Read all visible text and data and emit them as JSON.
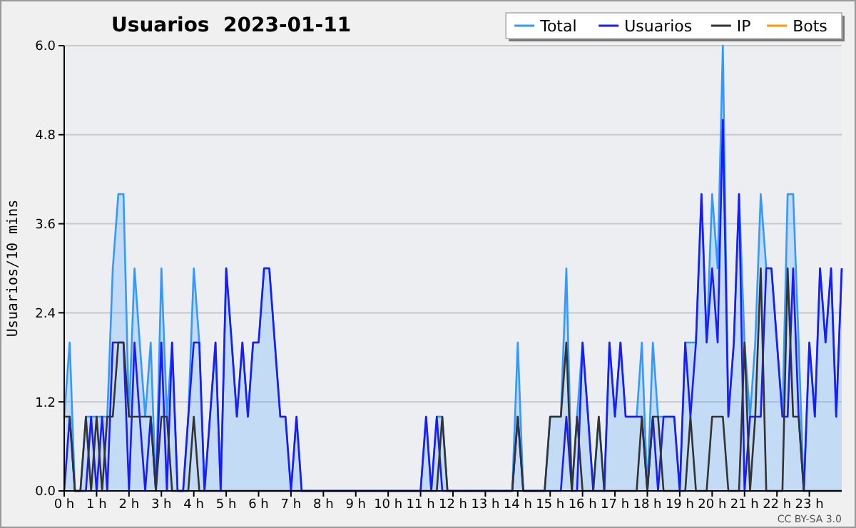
{
  "chart_data": {
    "type": "line",
    "title": "Usuarios  2023-01-11",
    "ylabel": "Usuarios/10 mins",
    "annotations": [
      "CC BY-SA 3.0"
    ],
    "x": [
      0,
      0.17,
      0.33,
      0.5,
      0.67,
      0.83,
      1,
      1.17,
      1.33,
      1.5,
      1.67,
      1.83,
      2,
      2.17,
      2.33,
      2.5,
      2.67,
      2.83,
      3,
      3.17,
      3.33,
      3.5,
      3.67,
      3.83,
      4,
      4.17,
      4.33,
      4.5,
      4.67,
      4.83,
      5,
      5.17,
      5.33,
      5.5,
      5.67,
      5.83,
      6,
      6.17,
      6.33,
      6.5,
      6.67,
      6.83,
      7,
      7.17,
      7.33,
      7.5,
      7.67,
      7.83,
      8,
      8.17,
      8.33,
      8.5,
      8.67,
      8.83,
      9,
      9.17,
      9.33,
      9.5,
      9.67,
      9.83,
      10,
      10.17,
      10.33,
      10.5,
      10.67,
      10.83,
      11,
      11.17,
      11.33,
      11.5,
      11.67,
      11.83,
      12,
      12.17,
      12.33,
      12.5,
      12.67,
      12.83,
      13,
      13.17,
      13.33,
      13.5,
      13.67,
      13.83,
      14,
      14.17,
      14.33,
      14.5,
      14.67,
      14.83,
      15,
      15.17,
      15.33,
      15.5,
      15.67,
      15.83,
      16,
      16.17,
      16.33,
      16.5,
      16.67,
      16.83,
      17,
      17.17,
      17.33,
      17.5,
      17.67,
      17.83,
      18,
      18.17,
      18.33,
      18.5,
      18.67,
      18.83,
      19,
      19.17,
      19.33,
      19.5,
      19.67,
      19.83,
      20,
      20.17,
      20.33,
      20.5,
      20.67,
      20.83,
      21,
      21.17,
      21.33,
      21.5,
      21.67,
      21.83,
      22,
      22.17,
      22.33,
      22.5,
      22.67,
      22.83,
      23,
      23.17,
      23.33,
      23.5,
      23.67,
      23.83,
      24
    ],
    "series": [
      {
        "name": "Total",
        "type": "area",
        "color": "#3399ff",
        "values": [
          1,
          2,
          0,
          0,
          1,
          1,
          1,
          1,
          1,
          3,
          4,
          4,
          1,
          3,
          2,
          1,
          2,
          0,
          3,
          1,
          2,
          0,
          0,
          1,
          3,
          2,
          0,
          1,
          2,
          0,
          3,
          2,
          1,
          2,
          1,
          2,
          2,
          3,
          3,
          2,
          1,
          1,
          0,
          1,
          0,
          0,
          0,
          0,
          0,
          0,
          0,
          0,
          0,
          0,
          0,
          0,
          0,
          0,
          0,
          0,
          0,
          0,
          0,
          0,
          0,
          0,
          0,
          1,
          0,
          1,
          1,
          0,
          0,
          0,
          0,
          0,
          0,
          0,
          0,
          0,
          0,
          0,
          0,
          0,
          2,
          0,
          0,
          0,
          0,
          0,
          1,
          1,
          1,
          3,
          0,
          1,
          2,
          1,
          0,
          1,
          0,
          2,
          1,
          2,
          1,
          1,
          1,
          2,
          0,
          2,
          1,
          1,
          1,
          1,
          0,
          2,
          2,
          2,
          4,
          2,
          4,
          3,
          6,
          1,
          2,
          4,
          2,
          1,
          2,
          4,
          3,
          3,
          2,
          1,
          4,
          4,
          2,
          0,
          2,
          1,
          3,
          2,
          3,
          1,
          3
        ]
      },
      {
        "name": "Usuarios",
        "type": "line",
        "color": "#1a1aff",
        "values": [
          0,
          1,
          0,
          0,
          0,
          1,
          0,
          1,
          0,
          2,
          2,
          2,
          0,
          2,
          1,
          0,
          1,
          0,
          2,
          0,
          2,
          0,
          0,
          1,
          2,
          2,
          0,
          1,
          2,
          0,
          3,
          2,
          1,
          2,
          1,
          2,
          2,
          3,
          3,
          2,
          1,
          1,
          0,
          1,
          0,
          0,
          0,
          0,
          0,
          0,
          0,
          0,
          0,
          0,
          0,
          0,
          0,
          0,
          0,
          0,
          0,
          0,
          0,
          0,
          0,
          0,
          0,
          1,
          0,
          1,
          0,
          0,
          0,
          0,
          0,
          0,
          0,
          0,
          0,
          0,
          0,
          0,
          0,
          0,
          1,
          0,
          0,
          0,
          0,
          0,
          0,
          0,
          0,
          1,
          0,
          0,
          2,
          1,
          0,
          0,
          0,
          2,
          1,
          2,
          1,
          1,
          1,
          1,
          0,
          1,
          0,
          1,
          1,
          1,
          0,
          2,
          1,
          2,
          4,
          2,
          3,
          2,
          5,
          1,
          2,
          4,
          0,
          1,
          1,
          1,
          3,
          3,
          2,
          1,
          1,
          3,
          1,
          0,
          2,
          1,
          3,
          2,
          3,
          1,
          3
        ]
      },
      {
        "name": "IP",
        "type": "line",
        "color": "#333333",
        "values": [
          1,
          1,
          0,
          0,
          1,
          0,
          1,
          0,
          1,
          1,
          2,
          2,
          1,
          1,
          1,
          1,
          1,
          0,
          1,
          1,
          0,
          0,
          0,
          0,
          1,
          0,
          0,
          0,
          0,
          0,
          0,
          0,
          0,
          0,
          0,
          0,
          0,
          0,
          0,
          0,
          0,
          0,
          0,
          0,
          0,
          0,
          0,
          0,
          0,
          0,
          0,
          0,
          0,
          0,
          0,
          0,
          0,
          0,
          0,
          0,
          0,
          0,
          0,
          0,
          0,
          0,
          0,
          0,
          0,
          0,
          1,
          0,
          0,
          0,
          0,
          0,
          0,
          0,
          0,
          0,
          0,
          0,
          0,
          0,
          1,
          0,
          0,
          0,
          0,
          0,
          1,
          1,
          1,
          2,
          0,
          1,
          0,
          0,
          0,
          1,
          0,
          0,
          0,
          0,
          0,
          0,
          0,
          1,
          0,
          1,
          1,
          0,
          0,
          0,
          0,
          0,
          1,
          0,
          0,
          0,
          1,
          1,
          1,
          0,
          0,
          0,
          2,
          0,
          1,
          3,
          0,
          0,
          0,
          0,
          3,
          1,
          1,
          0,
          0,
          0,
          0,
          0,
          0,
          0,
          0
        ]
      },
      {
        "name": "Bots",
        "type": "line",
        "color": "#ff9900",
        "values": [
          null,
          null,
          null,
          null,
          null,
          null,
          null,
          null,
          null,
          null,
          null,
          null,
          null,
          null,
          null,
          null,
          null,
          null,
          null,
          null,
          null,
          null,
          null,
          null,
          null,
          null,
          null,
          null,
          null,
          null,
          null,
          null,
          null,
          null,
          null,
          null,
          null,
          null,
          null,
          null,
          null,
          null,
          null,
          null,
          null,
          null,
          null,
          null,
          null,
          null,
          null,
          null,
          null,
          null,
          null,
          null,
          null,
          null,
          null,
          null,
          null,
          null,
          null,
          null,
          null,
          null,
          null,
          null,
          null,
          null,
          null,
          null,
          null,
          null,
          null,
          null,
          null,
          null,
          null,
          null,
          null,
          null,
          null,
          null,
          null,
          null,
          null,
          null,
          null,
          null,
          null,
          null,
          null,
          null,
          null,
          null,
          null,
          null,
          null,
          null,
          null,
          null,
          null,
          null,
          null,
          null,
          null,
          null,
          null,
          null,
          null,
          null,
          null,
          null,
          null,
          null,
          null,
          null,
          null,
          null,
          null,
          null,
          null,
          null,
          null,
          null,
          null,
          null,
          null,
          null,
          null,
          null,
          null,
          null,
          null,
          null,
          null,
          null,
          null,
          null,
          null,
          null,
          null,
          null,
          null
        ]
      }
    ],
    "xlim": [
      0,
      24
    ],
    "xticks": [
      {
        "value": 0,
        "label": "0 h"
      },
      {
        "value": 1,
        "label": "1 h"
      },
      {
        "value": 2,
        "label": "2 h"
      },
      {
        "value": 3,
        "label": "3 h"
      },
      {
        "value": 4,
        "label": "4 h"
      },
      {
        "value": 5,
        "label": "5 h"
      },
      {
        "value": 6,
        "label": "6 h"
      },
      {
        "value": 7,
        "label": "7 h"
      },
      {
        "value": 8,
        "label": "8 h"
      },
      {
        "value": 9,
        "label": "9 h"
      },
      {
        "value": 10,
        "label": "10 h"
      },
      {
        "value": 11,
        "label": "11 h"
      },
      {
        "value": 12,
        "label": "12 h"
      },
      {
        "value": 13,
        "label": "13 h"
      },
      {
        "value": 14,
        "label": "14 h"
      },
      {
        "value": 15,
        "label": "15 h"
      },
      {
        "value": 16,
        "label": "16 h"
      },
      {
        "value": 17,
        "label": "17 h"
      },
      {
        "value": 18,
        "label": "18 h"
      },
      {
        "value": 19,
        "label": "19 h"
      },
      {
        "value": 20,
        "label": "20 h"
      },
      {
        "value": 21,
        "label": "21 h"
      },
      {
        "value": 22,
        "label": "22 h"
      },
      {
        "value": 23,
        "label": "23 h"
      }
    ],
    "ylim": [
      0,
      6
    ],
    "yticks": [
      {
        "value": 0,
        "label": "0.0"
      },
      {
        "value": 1.2,
        "label": "1.2"
      },
      {
        "value": 2.4,
        "label": "2.4"
      },
      {
        "value": 3.6,
        "label": "3.6"
      },
      {
        "value": 4.8,
        "label": "4.8"
      },
      {
        "value": 6,
        "label": "6.0"
      }
    ],
    "grid": "y",
    "legend": "top right"
  }
}
